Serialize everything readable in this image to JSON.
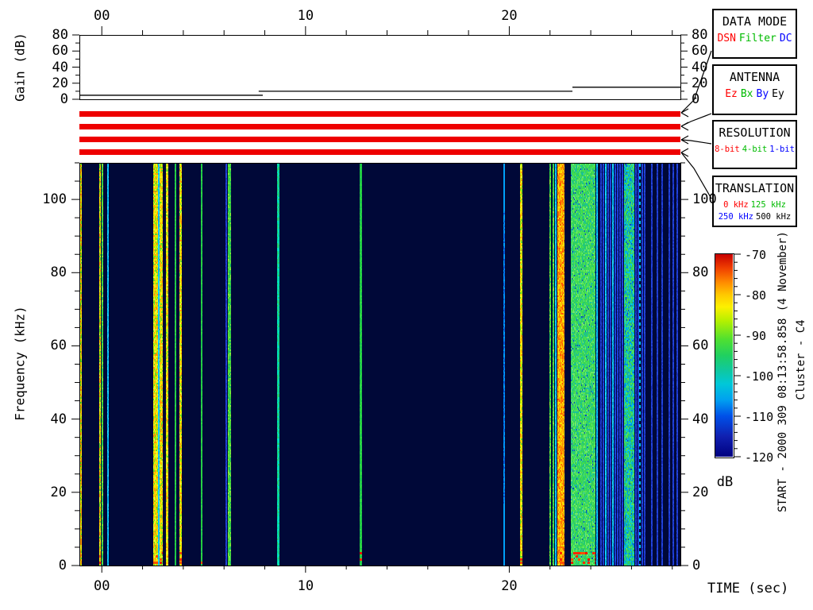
{
  "annotations": {
    "start": "START - 2000 309 08:13:58.858 (4 November)",
    "spacecraft": "Cluster - C4"
  },
  "panels": [
    {
      "title": "DATA MODE",
      "rows": [
        [
          {
            "label": "DSN",
            "color": "#ff0000"
          },
          {
            "label": "Filter",
            "color": "#00bb00"
          },
          {
            "label": "DC",
            "color": "#0000ff"
          }
        ]
      ]
    },
    {
      "title": "ANTENNA",
      "rows": [
        [
          {
            "label": "Ez",
            "color": "#ff0000"
          },
          {
            "label": "Bx",
            "color": "#00bb00"
          },
          {
            "label": "By",
            "color": "#0000ff"
          },
          {
            "label": "Ey",
            "color": "#000000"
          }
        ]
      ]
    },
    {
      "title": "RESOLUTION",
      "rows": [
        [
          {
            "label": "8-bit",
            "color": "#ff0000"
          },
          {
            "label": "4-bit",
            "color": "#00bb00"
          },
          {
            "label": "1-bit",
            "color": "#0000ff"
          }
        ]
      ]
    },
    {
      "title": "TRANSLATION",
      "rows": [
        [
          {
            "label": "0 kHz",
            "color": "#ff0000"
          },
          {
            "label": "125 kHz",
            "color": "#00bb00"
          }
        ],
        [
          {
            "label": "250 kHz",
            "color": "#0000ff"
          },
          {
            "label": "500 kHz",
            "color": "#000000"
          }
        ]
      ]
    }
  ],
  "status_bars": {
    "count": 4,
    "color": "#ee0000"
  },
  "chart_data": [
    {
      "type": "line",
      "id": "gain",
      "ylabel": "Gain (dB)",
      "xlim": [
        -1.1,
        28.4
      ],
      "ylim": [
        0,
        80
      ],
      "x_ticks": [
        {
          "t": 0,
          "label": "00"
        },
        {
          "t": 10,
          "label": "10"
        },
        {
          "t": 20,
          "label": "20"
        }
      ],
      "x_minor_step": 2,
      "y_ticks": [
        {
          "v": 80,
          "label": "80"
        },
        {
          "v": 60,
          "label": "60"
        },
        {
          "v": 40,
          "label": "40"
        },
        {
          "v": 20,
          "label": "20"
        },
        {
          "v": 0,
          "label": "0"
        }
      ],
      "y_minor_step": 10,
      "steps": [
        {
          "t0": -1.1,
          "t1": 7.9,
          "gain_db": 5
        },
        {
          "t0": 7.7,
          "t1": 23.1,
          "gain_db": 10
        },
        {
          "t0": 23.1,
          "t1": 28.4,
          "gain_db": 15
        }
      ]
    },
    {
      "type": "heatmap",
      "id": "spectrogram",
      "ylabel": "Frequency (kHz)",
      "xlabel": "TIME (sec)",
      "xlim": [
        -1.1,
        28.4
      ],
      "ylim": [
        0,
        110
      ],
      "x_ticks": [
        {
          "t": 0,
          "label": "00"
        },
        {
          "t": 10,
          "label": "10"
        },
        {
          "t": 20,
          "label": "20"
        }
      ],
      "x_minor_step": 2,
      "y_ticks": [
        {
          "v": 100,
          "label": "100"
        },
        {
          "v": 80,
          "label": "80"
        },
        {
          "v": 60,
          "label": "60"
        },
        {
          "v": 40,
          "label": "40"
        },
        {
          "v": 20,
          "label": "20"
        },
        {
          "v": 0,
          "label": "0"
        }
      ],
      "y_minor_step": 5,
      "background_db": -120,
      "stripes": [
        {
          "t": -1.1,
          "w": 0.08,
          "style": "yellow_noisy",
          "red_bottom": true
        },
        {
          "t": -0.18,
          "w": 0.08,
          "style": "yellow_noisy",
          "red_bottom": true
        },
        {
          "t": -0.05,
          "w": 0.07,
          "style": "green_noisy"
        },
        {
          "t": 0.22,
          "w": 0.08,
          "style": "cyan_line"
        },
        {
          "t": 2.5,
          "w": 0.22,
          "style": "yellow_noisy",
          "red_bottom": true
        },
        {
          "t": 2.74,
          "w": 0.06,
          "style": "cyan_line"
        },
        {
          "t": 2.81,
          "w": 0.16,
          "style": "yellow_noisy",
          "red_bottom": true
        },
        {
          "t": 3.12,
          "w": 0.1,
          "style": "yellow_noisy"
        },
        {
          "t": 3.54,
          "w": 0.08,
          "style": "green_line"
        },
        {
          "t": 3.76,
          "w": 0.12,
          "style": "yellow_noisy",
          "red_bottom": true
        },
        {
          "t": 4.82,
          "w": 0.08,
          "style": "green_line",
          "red_bottom": true
        },
        {
          "t": 6.06,
          "w": 0.06,
          "style": "blue_line"
        },
        {
          "t": 6.17,
          "w": 0.14,
          "style": "green_noisy"
        },
        {
          "t": 8.56,
          "w": 0.1,
          "style": "cyan_green_line"
        },
        {
          "t": 12.65,
          "w": 0.1,
          "style": "green_line",
          "red_bottom": true
        },
        {
          "t": 19.7,
          "w": 0.08,
          "style": "blue_cyan_line"
        },
        {
          "t": 20.52,
          "w": 0.1,
          "style": "yellow_noisy",
          "red_bottom": true
        },
        {
          "t": 21.95,
          "w": 0.08,
          "style": "green_noisy"
        },
        {
          "t": 22.1,
          "w": 0.08,
          "style": "green_noisy"
        },
        {
          "t": 22.24,
          "w": 0.08,
          "style": "cyan_line"
        },
        {
          "t": 22.35,
          "w": 0.36,
          "style": "orange_noisy",
          "red_bottom": true
        },
        {
          "t": 23.02,
          "w": 1.22,
          "style": "green_band",
          "red_bottom": true
        },
        {
          "t": 24.28,
          "w": 0.08,
          "style": "cyan_line"
        },
        {
          "t": 24.44,
          "w": 0.06,
          "style": "blue_line"
        },
        {
          "t": 24.56,
          "w": 0.06,
          "style": "blue_line"
        },
        {
          "t": 24.68,
          "w": 0.06,
          "style": "cyan_line"
        },
        {
          "t": 24.8,
          "w": 0.06,
          "style": "blue_line"
        },
        {
          "t": 24.92,
          "w": 0.06,
          "style": "blue_line"
        },
        {
          "t": 25.04,
          "w": 0.06,
          "style": "cyan_line"
        },
        {
          "t": 25.16,
          "w": 0.06,
          "style": "blue_line"
        },
        {
          "t": 25.28,
          "w": 0.06,
          "style": "blue_line"
        },
        {
          "t": 25.4,
          "w": 0.06,
          "style": "blue_line"
        },
        {
          "t": 25.52,
          "w": 0.06,
          "style": "blue_line"
        },
        {
          "t": 25.64,
          "w": 0.5,
          "style": "green_band_cyan"
        },
        {
          "t": 26.16,
          "w": 0.06,
          "style": "blue_line"
        },
        {
          "t": 26.28,
          "w": 0.06,
          "style": "blue_line"
        },
        {
          "t": 26.38,
          "w": 0.06,
          "style": "cyan_dotted"
        },
        {
          "t": 26.5,
          "w": 0.06,
          "style": "blue_line"
        },
        {
          "t": 26.62,
          "w": 0.06,
          "style": "blue_line"
        },
        {
          "t": 26.95,
          "w": 0.06,
          "style": "blue_line"
        },
        {
          "t": 27.22,
          "w": 0.06,
          "style": "blue_line"
        },
        {
          "t": 27.46,
          "w": 0.06,
          "style": "blue_line"
        },
        {
          "t": 27.82,
          "w": 0.06,
          "style": "blue_line"
        },
        {
          "t": 28.02,
          "w": 0.06,
          "style": "blue_line"
        },
        {
          "t": 28.22,
          "w": 0.06,
          "style": "blue_line"
        }
      ]
    },
    {
      "type": "colorbar",
      "id": "colorbar",
      "label": "dB",
      "range": [
        -70,
        -120
      ],
      "ticks": [
        {
          "v": -70,
          "label": "-70"
        },
        {
          "v": -80,
          "label": "-80"
        },
        {
          "v": -90,
          "label": "-90"
        },
        {
          "v": -100,
          "label": "-100"
        },
        {
          "v": -110,
          "label": "-110"
        },
        {
          "v": -120,
          "label": "-120"
        }
      ],
      "minor_step": 2,
      "gradient": [
        [
          0,
          "#c80000"
        ],
        [
          0.07,
          "#f04000"
        ],
        [
          0.14,
          "#ff8c00"
        ],
        [
          0.2,
          "#ffc800"
        ],
        [
          0.26,
          "#fdf000"
        ],
        [
          0.33,
          "#b4f000"
        ],
        [
          0.42,
          "#50e030"
        ],
        [
          0.5,
          "#20d060"
        ],
        [
          0.57,
          "#10c89c"
        ],
        [
          0.64,
          "#00c8d8"
        ],
        [
          0.72,
          "#00a0f0"
        ],
        [
          0.8,
          "#0050e8"
        ],
        [
          0.9,
          "#1020b0"
        ],
        [
          1,
          "#000080"
        ]
      ]
    }
  ]
}
